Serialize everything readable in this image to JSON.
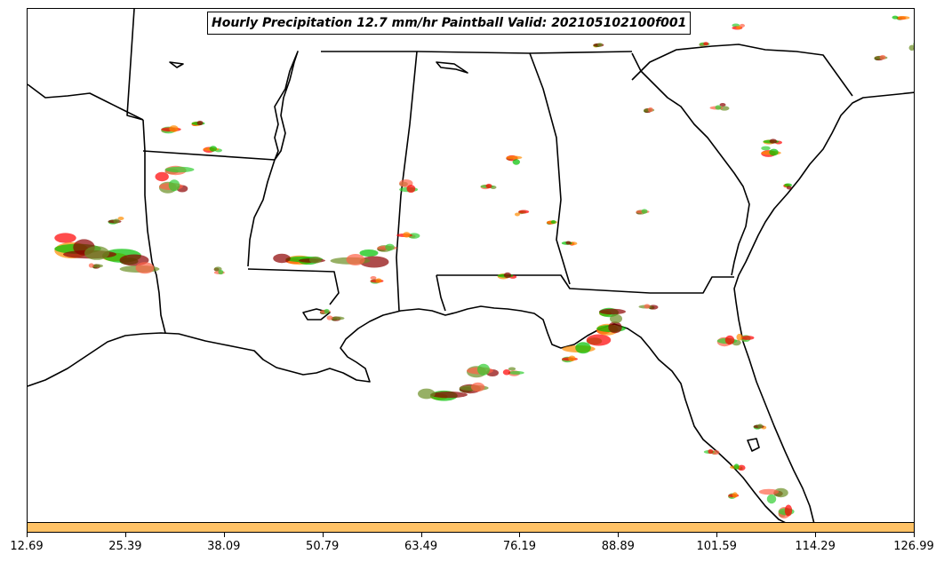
{
  "title": "Hourly Precipitation 12.7 mm/hr Paintball Valid: 202105102100f001",
  "colorbar": {
    "color": "#ffc266",
    "ticks": [
      "12.69",
      "25.39",
      "38.09",
      "50.79",
      "63.49",
      "76.19",
      "88.89",
      "101.59",
      "114.29",
      "126.99"
    ]
  },
  "colors": {
    "land_outline": "#000000",
    "member_colors": [
      "#ff0000",
      "#ff8c00",
      "#00c000",
      "#8b0000",
      "#6b8e23",
      "#ff6347",
      "#32cd32"
    ]
  }
}
